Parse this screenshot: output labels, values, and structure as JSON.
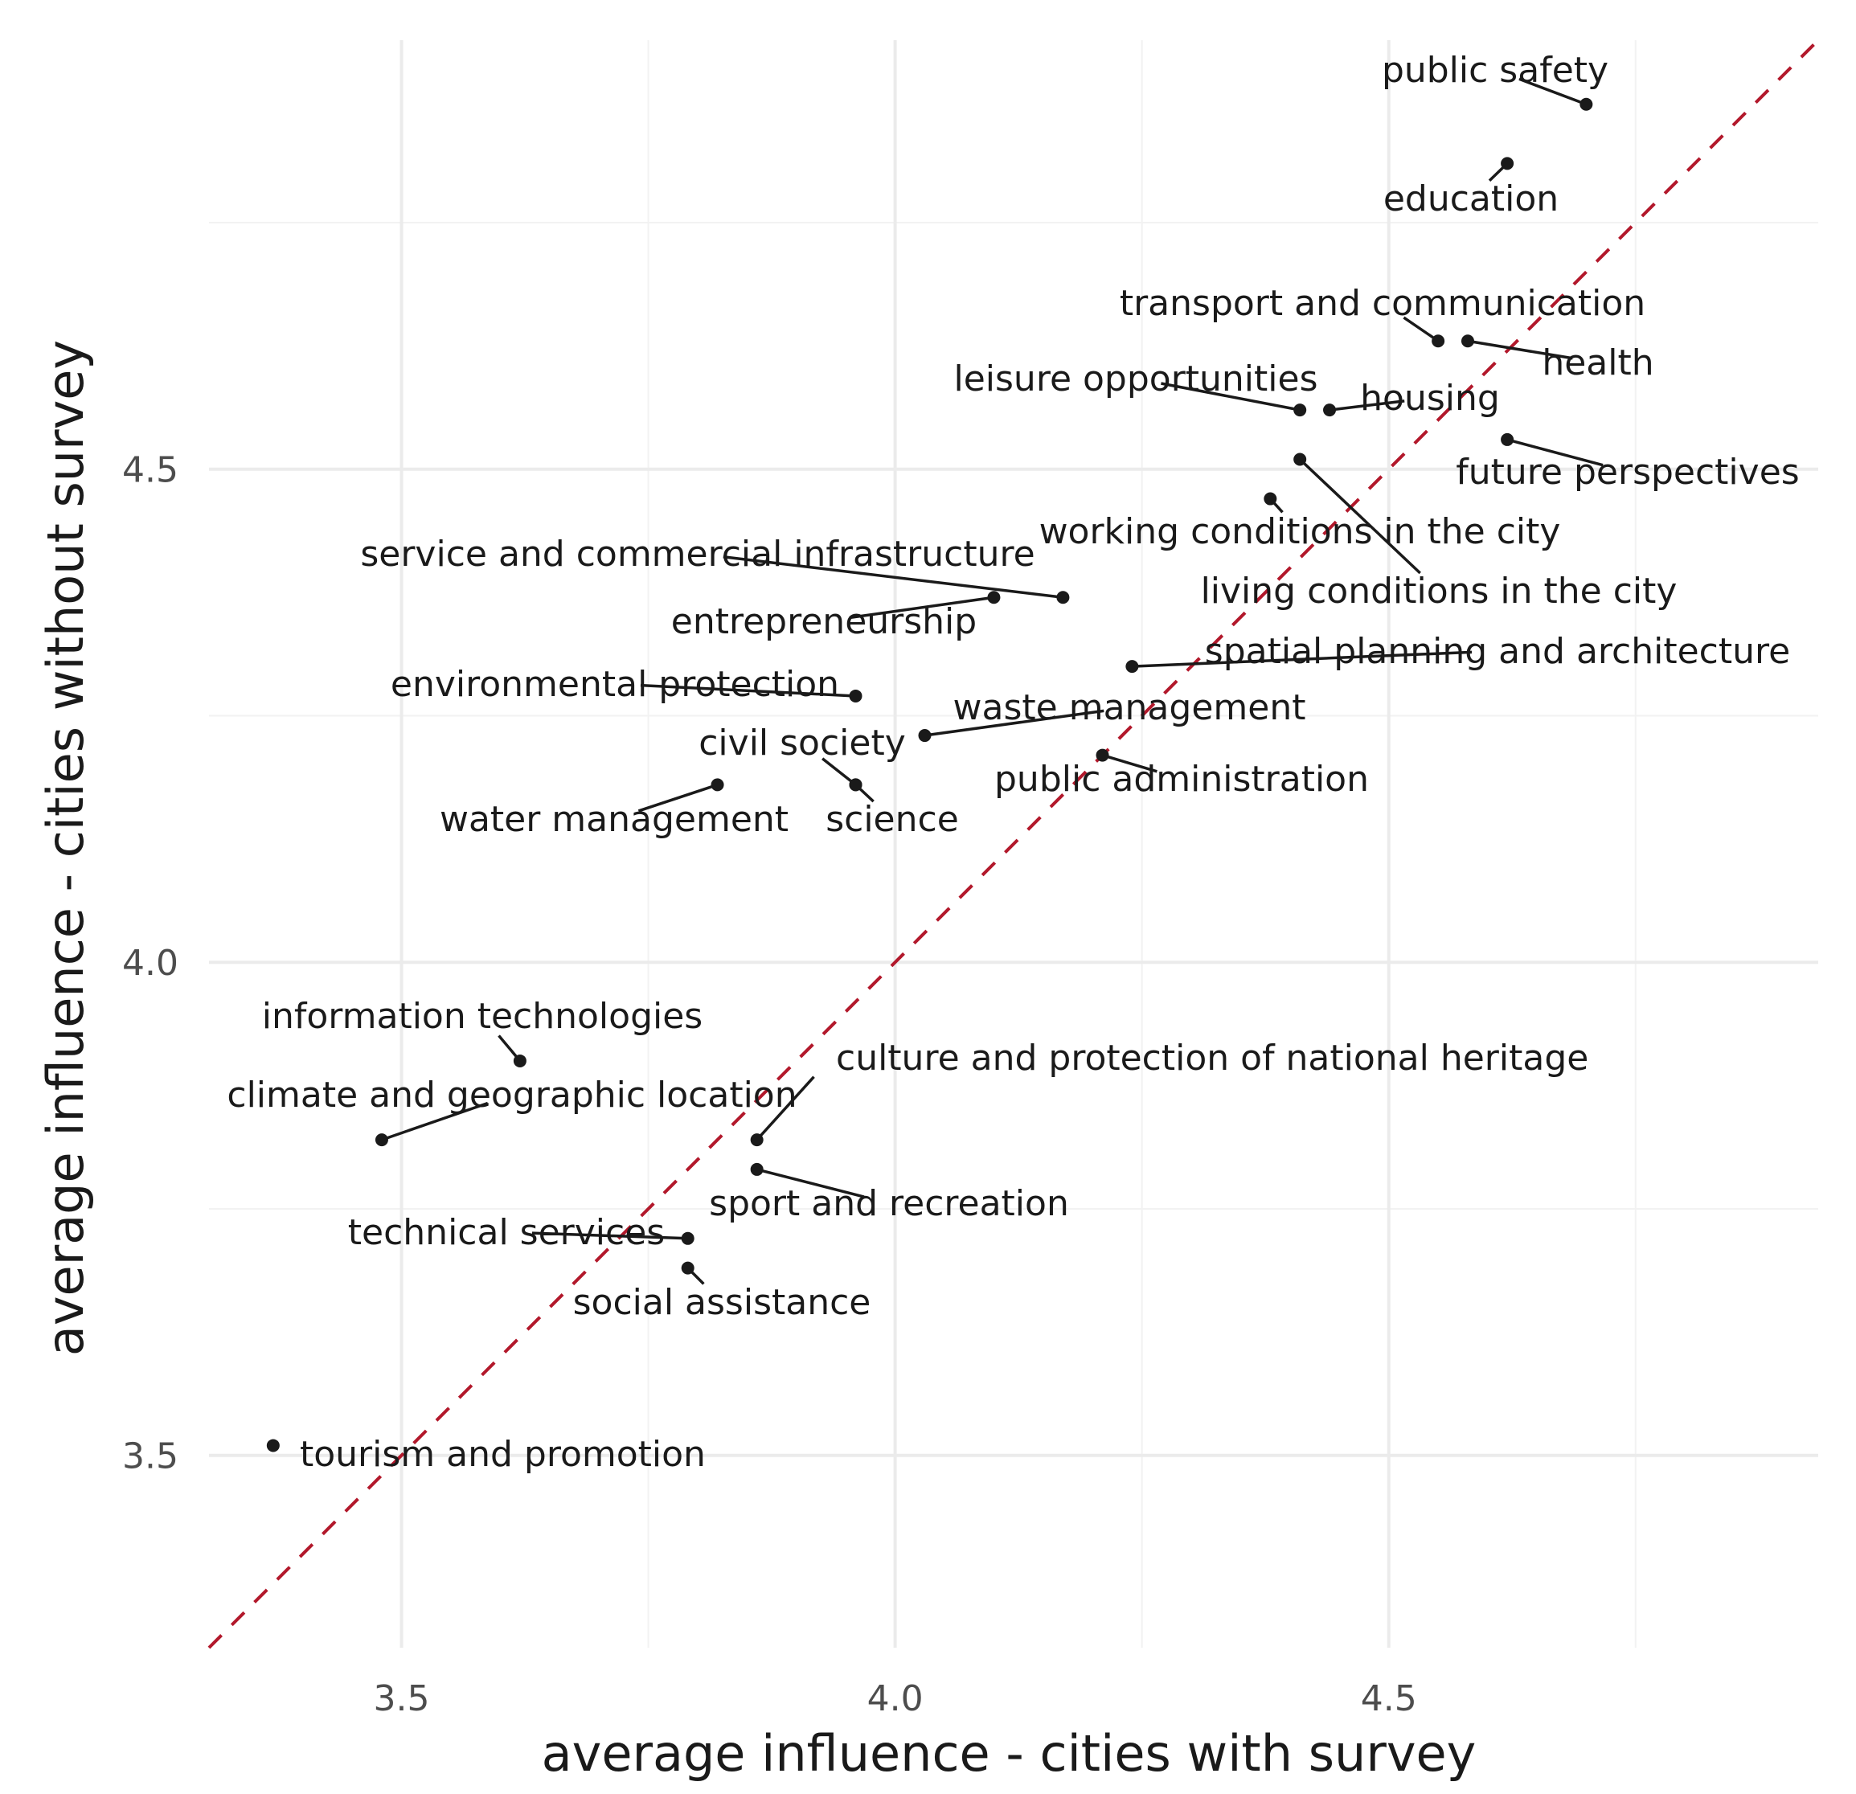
{
  "chart_data": {
    "type": "scatter",
    "xlabel": "average influence - cities with survey",
    "ylabel": "average influence - cities without survey",
    "xlim": [
      3.305,
      4.935
    ],
    "ylim": [
      3.305,
      4.935
    ],
    "x_ticks": [
      3.5,
      4.0,
      4.5
    ],
    "y_ticks": [
      3.5,
      4.0,
      4.5
    ],
    "x_tick_labels": [
      "3.5",
      "4.0",
      "4.5"
    ],
    "y_tick_labels": [
      "3.5",
      "4.0",
      "4.5"
    ],
    "grid": true,
    "reference_line": {
      "slope": 1,
      "intercept": 0,
      "style": "dashed",
      "color": "#b2182b"
    },
    "points": [
      {
        "label": "public safety",
        "x": 4.7,
        "y": 4.87
      },
      {
        "label": "education",
        "x": 4.62,
        "y": 4.81
      },
      {
        "label": "transport and communication",
        "x": 4.55,
        "y": 4.63
      },
      {
        "label": "health",
        "x": 4.58,
        "y": 4.63
      },
      {
        "label": "leisure opportunities",
        "x": 4.41,
        "y": 4.56
      },
      {
        "label": "housing",
        "x": 4.44,
        "y": 4.56
      },
      {
        "label": "future perspectives",
        "x": 4.62,
        "y": 4.53
      },
      {
        "label": "living conditions in the city",
        "x": 4.41,
        "y": 4.51
      },
      {
        "label": "working conditions in the city",
        "x": 4.38,
        "y": 4.47
      },
      {
        "label": "service and commercial infrastructure",
        "x": 4.17,
        "y": 4.37
      },
      {
        "label": "entrepreneurship",
        "x": 4.1,
        "y": 4.37
      },
      {
        "label": "spatial planning and architecture",
        "x": 4.24,
        "y": 4.3
      },
      {
        "label": "environmental protection",
        "x": 3.96,
        "y": 4.27
      },
      {
        "label": "waste management",
        "x": 4.03,
        "y": 4.23
      },
      {
        "label": "public administration",
        "x": 4.21,
        "y": 4.21
      },
      {
        "label": "civil society",
        "x": 3.96,
        "y": 4.18
      },
      {
        "label": "water management",
        "x": 3.82,
        "y": 4.18
      },
      {
        "label": "science",
        "x": 3.96,
        "y": 4.18
      },
      {
        "label": "information technologies",
        "x": 3.62,
        "y": 3.9
      },
      {
        "label": "climate and geographic location",
        "x": 3.48,
        "y": 3.82
      },
      {
        "label": "culture and protection of national heritage",
        "x": 3.86,
        "y": 3.82
      },
      {
        "label": "sport and recreation",
        "x": 3.86,
        "y": 3.79
      },
      {
        "label": "technical services",
        "x": 3.79,
        "y": 3.72
      },
      {
        "label": "social assistance",
        "x": 3.79,
        "y": 3.69
      },
      {
        "label": "tourism and promotion",
        "x": 3.37,
        "y": 3.51
      }
    ]
  }
}
